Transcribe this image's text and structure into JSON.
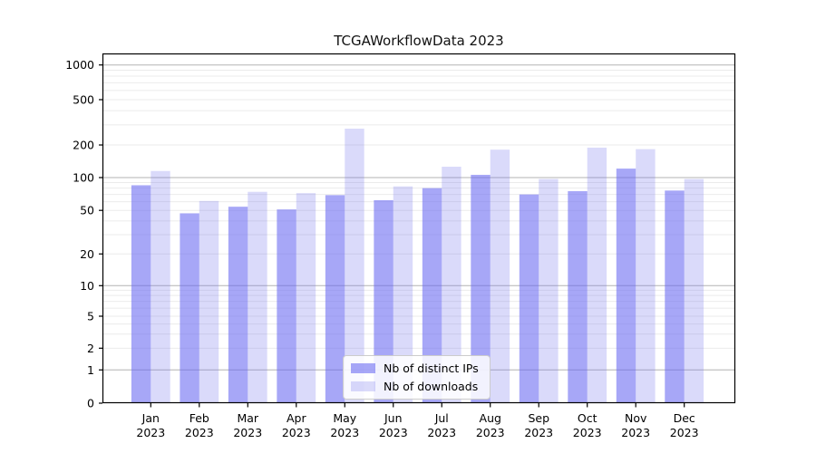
{
  "title": "TCGAWorkflowData 2023",
  "legend": {
    "position": "lower center",
    "items": [
      {
        "label": "Nb of distinct IPs"
      },
      {
        "label": "Nb of downloads"
      }
    ]
  },
  "chart_data": {
    "type": "bar",
    "title": "TCGAWorkflowData 2023",
    "categories": [
      "Jan",
      "Feb",
      "Mar",
      "Apr",
      "May",
      "Jun",
      "Jul",
      "Aug",
      "Sep",
      "Oct",
      "Nov",
      "Dec"
    ],
    "x_tick_year": "2023",
    "series": [
      {
        "name": "Nb of distinct IPs",
        "color": "rgba(103,103,241,0.58)",
        "values": [
          85,
          47,
          54,
          51,
          69,
          62,
          80,
          106,
          70,
          75,
          121,
          76
        ]
      },
      {
        "name": "Nb of downloads",
        "color": "rgba(113,113,236,0.26)",
        "values": [
          115,
          61,
          74,
          72,
          278,
          83,
          126,
          181,
          97,
          189,
          183,
          97
        ]
      }
    ],
    "xlabel": "",
    "ylabel": "",
    "yscale": "symlog",
    "y_ticks": [
      0,
      1,
      2,
      5,
      10,
      20,
      50,
      100,
      200,
      500,
      1000
    ],
    "ylim": [
      0,
      1200
    ],
    "grid": "on",
    "grid_major_color": "#b3b3b3",
    "grid_minor_color": "#ebebeb",
    "spine_color": "#000000"
  }
}
